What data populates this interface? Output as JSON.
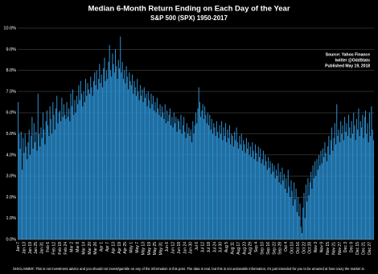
{
  "chart_data": {
    "type": "bar",
    "title": "Median 6-Month Return Ending on Each Day of the Year",
    "subtitle": "S&P 500 (SPX) 1950-2017",
    "source_lines": [
      "Source: Yahoo Finance",
      "twitter @OddStats",
      "Published May 19, 2018"
    ],
    "disclaimer": "DISCLAIMER: This is not investment advice and you should not invest/gamble on any of the information in this post.   The data is real, but this is not actionable information, it's just intended for you to be amazed at how crazy the market is.",
    "color": "#2b8ccc",
    "grid": true,
    "ylim": [
      0,
      10
    ],
    "yticks": [
      {
        "value": 0,
        "label": "0.0%"
      },
      {
        "value": 1,
        "label": "1.0%"
      },
      {
        "value": 2,
        "label": "2.0%"
      },
      {
        "value": 3,
        "label": "3.0%"
      },
      {
        "value": 4,
        "label": "4.0%"
      },
      {
        "value": 5,
        "label": "5.0%"
      },
      {
        "value": 6,
        "label": "6.0%"
      },
      {
        "value": 7,
        "label": "7.0%"
      },
      {
        "value": 8,
        "label": "8.0%"
      },
      {
        "value": 9,
        "label": "9.0%"
      },
      {
        "value": 10,
        "label": "10.0%"
      }
    ],
    "categories": [
      "Jan 7",
      null,
      null,
      null,
      null,
      null,
      "Jan 13",
      null,
      null,
      null,
      null,
      null,
      "Jan 19",
      null,
      null,
      null,
      null,
      null,
      "Jan 25",
      null,
      null,
      null,
      null,
      null,
      "Jan 31",
      null,
      null,
      null,
      null,
      null,
      "Feb 6",
      null,
      null,
      null,
      null,
      null,
      "Feb 12",
      null,
      null,
      null,
      null,
      null,
      "Feb 18",
      null,
      null,
      null,
      null,
      null,
      "Feb 24",
      null,
      null,
      null,
      null,
      null,
      "Mar 2",
      null,
      null,
      null,
      null,
      null,
      "Mar 8",
      null,
      null,
      null,
      null,
      null,
      "Mar 14",
      null,
      null,
      null,
      null,
      null,
      "Mar 20",
      null,
      null,
      null,
      null,
      null,
      "Mar 26",
      null,
      null,
      null,
      null,
      null,
      "Apr 1",
      null,
      null,
      null,
      null,
      null,
      "Apr 7",
      null,
      null,
      null,
      null,
      null,
      "Apr 13",
      null,
      null,
      null,
      null,
      null,
      "Apr 19",
      null,
      null,
      null,
      null,
      null,
      "Apr 25",
      null,
      null,
      null,
      null,
      null,
      "May 1",
      null,
      null,
      null,
      null,
      null,
      "May 7",
      null,
      null,
      null,
      null,
      null,
      "May 13",
      null,
      null,
      null,
      null,
      null,
      "May 19",
      null,
      null,
      null,
      null,
      null,
      "May 25",
      null,
      null,
      null,
      null,
      null,
      "May 31",
      null,
      null,
      null,
      null,
      null,
      "Jun 6",
      null,
      null,
      null,
      null,
      null,
      "Jun 12",
      null,
      null,
      null,
      null,
      null,
      "Jun 18",
      null,
      null,
      null,
      null,
      null,
      "Jun 24",
      null,
      null,
      null,
      null,
      null,
      "Jun 30",
      null,
      null,
      null,
      null,
      null,
      "Jul 6",
      null,
      null,
      null,
      null,
      null,
      "Jul 12",
      null,
      null,
      null,
      null,
      null,
      "Jul 18",
      null,
      null,
      null,
      null,
      null,
      "Jul 24",
      null,
      null,
      null,
      null,
      null,
      "Jul 30",
      null,
      null,
      null,
      null,
      null,
      "Aug 5",
      null,
      null,
      null,
      null,
      null,
      "Aug 11",
      null,
      null,
      null,
      null,
      null,
      "Aug 17",
      null,
      null,
      null,
      null,
      null,
      "Aug 23",
      null,
      null,
      null,
      null,
      null,
      "Aug 29",
      null,
      null,
      null,
      null,
      null,
      "Sep 4",
      null,
      null,
      null,
      null,
      null,
      "Sep 10",
      null,
      null,
      null,
      null,
      null,
      "Sep 16",
      null,
      null,
      null,
      null,
      null,
      "Sep 22",
      null,
      null,
      null,
      null,
      null,
      "Sep 28",
      null,
      null,
      null,
      null,
      null,
      "Oct 4",
      null,
      null,
      null,
      null,
      null,
      "Oct 10",
      null,
      null,
      null,
      null,
      null,
      "Oct 16",
      null,
      null,
      null,
      null,
      null,
      "Oct 22",
      null,
      null,
      null,
      null,
      null,
      "Oct 28",
      null,
      null,
      null,
      null,
      null,
      "Nov 3",
      null,
      null,
      null,
      null,
      null,
      "Nov 9",
      null,
      null,
      null,
      null,
      null,
      "Nov 15",
      null,
      null,
      null,
      null,
      null,
      "Nov 21",
      null,
      null,
      null,
      null,
      null,
      "Nov 27",
      null,
      null,
      null,
      null,
      null,
      "Dec 3",
      null,
      null,
      null,
      null,
      null,
      "Dec 9",
      null,
      null,
      null,
      null,
      null,
      "Dec 15",
      null,
      null,
      null,
      null,
      null,
      "Dec 21",
      null,
      null,
      null,
      null,
      null,
      "Dec 27",
      null,
      null,
      null,
      null
    ],
    "values": [
      6.5,
      5.0,
      4.3,
      5.1,
      3.3,
      4.8,
      4.1,
      5.0,
      4.4,
      3.8,
      4.6,
      5.2,
      4.0,
      4.9,
      5.8,
      4.3,
      5.5,
      4.6,
      5.1,
      4.2,
      6.9,
      5.0,
      4.4,
      5.3,
      4.8,
      6.0,
      5.2,
      4.5,
      5.6,
      6.1,
      5.4,
      4.9,
      6.3,
      5.7,
      5.0,
      6.5,
      5.9,
      5.2,
      6.2,
      6.8,
      5.5,
      6.0,
      6.1,
      5.6,
      6.7,
      5.8,
      6.4,
      5.9,
      5.7,
      6.5,
      5.8,
      6.2,
      5.6,
      6.9,
      6.3,
      7.1,
      5.9,
      6.6,
      6.0,
      6.8,
      6.4,
      7.3,
      6.6,
      7.5,
      6.9,
      6.3,
      7.0,
      6.5,
      7.6,
      6.8,
      7.4,
      7.1,
      6.9,
      7.7,
      7.2,
      6.8,
      7.5,
      7.9,
      7.3,
      8.0,
      7.1,
      7.6,
      8.3,
      7.4,
      7.8,
      7.2,
      8.1,
      8.6,
      7.5,
      8.0,
      7.6,
      8.4,
      9.2,
      8.0,
      7.7,
      8.8,
      8.3,
      7.9,
      9.0,
      8.2,
      7.6,
      8.5,
      8.1,
      9.6,
      7.9,
      8.4,
      7.6,
      8.0,
      7.4,
      8.2,
      7.7,
      7.1,
      7.9,
      7.5,
      7.3,
      7.8,
      6.9,
      7.5,
      7.2,
      6.8,
      7.6,
      7.0,
      6.6,
      7.3,
      6.8,
      7.1,
      6.5,
      7.2,
      6.7,
      6.9,
      6.3,
      7.0,
      6.6,
      6.2,
      6.9,
      6.4,
      6.8,
      6.1,
      6.5,
      6.0,
      6.7,
      6.2,
      5.9,
      6.4,
      5.8,
      6.3,
      6.0,
      5.7,
      6.4,
      5.5,
      6.1,
      5.6,
      5.9,
      6.2,
      5.4,
      5.8,
      5.3,
      6.0,
      5.5,
      5.8,
      5.1,
      5.7,
      5.6,
      5.2,
      5.9,
      5.0,
      5.4,
      5.8,
      5.1,
      4.8,
      5.5,
      5.0,
      5.3,
      4.9,
      5.2,
      4.6,
      5.6,
      5.0,
      5.4,
      6.0,
      5.5,
      6.2,
      7.2,
      6.5,
      5.8,
      6.1,
      6.4,
      5.7,
      6.3,
      5.9,
      5.5,
      6.0,
      5.4,
      5.9,
      5.2,
      5.7,
      5.0,
      5.5,
      5.3,
      4.9,
      5.6,
      5.1,
      4.8,
      5.4,
      5.0,
      5.6,
      4.7,
      5.3,
      4.9,
      5.5,
      4.6,
      5.2,
      4.8,
      5.4,
      4.5,
      5.0,
      4.9,
      4.4,
      5.1,
      4.7,
      5.3,
      4.6,
      4.3,
      4.9,
      4.5,
      5.0,
      4.2,
      4.7,
      4.5,
      4.1,
      4.8,
      4.3,
      4.6,
      4.0,
      4.4,
      3.9,
      4.6,
      4.2,
      3.8,
      4.5,
      4.1,
      3.7,
      4.4,
      3.9,
      4.3,
      3.6,
      3.8,
      4.2,
      3.5,
      4.0,
      3.7,
      3.3,
      3.9,
      3.4,
      3.7,
      3.1,
      3.6,
      3.2,
      3.5,
      2.9,
      3.3,
      3.0,
      3.6,
      2.7,
      3.2,
      2.6,
      3.4,
      2.8,
      3.1,
      2.4,
      2.9,
      2.2,
      3.3,
      2.5,
      2.0,
      2.8,
      2.3,
      1.6,
      2.7,
      1.9,
      2.4,
      1.3,
      2.0,
      1.1,
      1.7,
      0.6,
      0.3,
      1.5,
      2.2,
      1.0,
      2.6,
      1.8,
      2.9,
      2.1,
      2.7,
      3.2,
      2.4,
      3.5,
      2.9,
      3.7,
      3.0,
      3.8,
      3.3,
      4.0,
      3.5,
      4.2,
      3.6,
      4.3,
      3.9,
      4.6,
      4.1,
      3.7,
      4.4,
      4.9,
      4.0,
      4.7,
      5.3,
      4.2,
      4.8,
      5.5,
      4.5,
      6.4,
      4.9,
      5.2,
      4.6,
      5.6,
      5.0,
      5.4,
      4.7,
      5.8,
      5.1,
      5.5,
      4.9,
      5.9,
      5.3,
      4.8,
      5.6,
      5.0,
      6.0,
      5.4,
      4.7,
      5.7,
      5.2,
      6.2,
      4.9,
      5.6,
      5.3,
      5.9,
      4.8,
      5.8,
      6.1,
      5.0,
      5.5,
      4.6,
      6.0,
      4.9,
      6.3,
      5.2,
      4.7
    ]
  }
}
